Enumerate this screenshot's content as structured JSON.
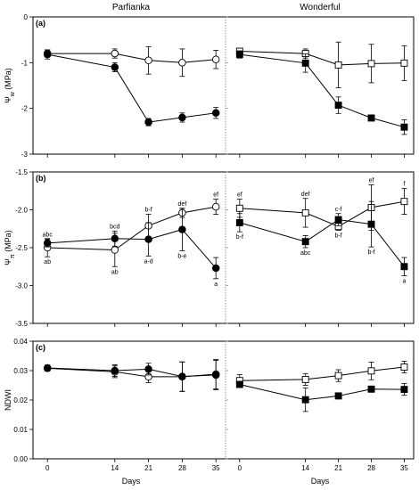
{
  "chart_data": [
    {
      "panel": "(a)",
      "type": "line",
      "ylabel": "Ψw (MPa)",
      "ylabel_symbol": "Ψ",
      "ylabel_sub": "w",
      "ylabel_unit": "(MPa)",
      "ylim": [
        -3,
        0
      ],
      "yticks": [
        0,
        -1,
        -2,
        -3
      ],
      "ytick_labels": [
        "0",
        "-1",
        "-2",
        "-3"
      ],
      "cultivars": [
        {
          "name": "Parfianka",
          "series": [
            {
              "marker": "open-circle",
              "x": [
                0,
                14,
                21,
                28,
                35
              ],
              "y": [
                -0.8,
                -0.8,
                -0.95,
                -1.0,
                -0.93
              ],
              "err": [
                0.08,
                0.1,
                0.3,
                0.3,
                0.2
              ]
            },
            {
              "marker": "filled-circle",
              "x": [
                0,
                14,
                21,
                28,
                35
              ],
              "y": [
                -0.82,
                -1.1,
                -2.3,
                -2.2,
                -2.1
              ],
              "err": [
                0.1,
                0.1,
                0.08,
                0.1,
                0.12
              ]
            }
          ]
        },
        {
          "name": "Wonderful",
          "series": [
            {
              "marker": "open-square",
              "x": [
                0,
                14,
                21,
                28,
                35
              ],
              "y": [
                -0.75,
                -0.8,
                -1.05,
                -1.02,
                -1.01
              ],
              "err": [
                0.06,
                0.1,
                0.5,
                0.42,
                0.38
              ]
            },
            {
              "marker": "filled-square",
              "x": [
                0,
                14,
                21,
                28,
                35
              ],
              "y": [
                -0.82,
                -1.01,
                -1.93,
                -2.21,
                -2.41
              ],
              "err": [
                0.08,
                0.2,
                0.18,
                0.05,
                0.16
              ]
            }
          ]
        }
      ]
    },
    {
      "panel": "(b)",
      "type": "line",
      "ylabel": "Ψπ (MPa)",
      "ylabel_symbol": "Ψ",
      "ylabel_sub": "π",
      "ylabel_unit": "(MPa)",
      "ylim": [
        -3.5,
        -1.5
      ],
      "yticks": [
        -1.5,
        -2.0,
        -2.5,
        -3.0,
        -3.5
      ],
      "ytick_labels": [
        "-1.5",
        "-2.0",
        "-2.5",
        "-3.0",
        "-3.5"
      ],
      "cultivars": [
        {
          "name": "Parfianka",
          "series": [
            {
              "marker": "open-circle",
              "x": [
                0,
                14,
                21,
                28,
                35
              ],
              "y": [
                -2.5,
                -2.53,
                -2.21,
                -2.04,
                -1.96
              ],
              "err": [
                0.12,
                0.22,
                0.15,
                0.06,
                0.1
              ],
              "labels": [
                "ab",
                "ab",
                "b-f",
                "def",
                "ef"
              ],
              "label_side": [
                "below",
                "below",
                "above",
                "above",
                "above"
              ]
            },
            {
              "marker": "filled-circle",
              "x": [
                0,
                14,
                21,
                28,
                35
              ],
              "y": [
                -2.44,
                -2.38,
                -2.39,
                -2.26,
                -2.77
              ],
              "err": [
                0.05,
                0.1,
                0.22,
                0.28,
                0.14
              ],
              "labels": [
                "abc",
                "bcd",
                "a-d",
                "b-e",
                "a"
              ],
              "label_side": [
                "above",
                "above",
                "below",
                "below",
                "below"
              ]
            }
          ]
        },
        {
          "name": "Wonderful",
          "series": [
            {
              "marker": "open-square",
              "x": [
                0,
                14,
                21,
                28,
                35
              ],
              "y": [
                -1.98,
                -2.04,
                -2.22,
                -1.97,
                -1.89
              ],
              "err": [
                0.12,
                0.19,
                0.05,
                0.3,
                0.17
              ],
              "labels": [
                "ef",
                "def",
                "b-f",
                "ef",
                "f"
              ],
              "label_side": [
                "above",
                "above",
                "below",
                "above",
                "above"
              ]
            },
            {
              "marker": "filled-square",
              "x": [
                0,
                14,
                21,
                28,
                35
              ],
              "y": [
                -2.17,
                -2.42,
                -2.13,
                -2.19,
                -2.75
              ],
              "err": [
                0.12,
                0.08,
                0.08,
                0.3,
                0.12
              ],
              "labels": [
                "b-f",
                "abc",
                "c-f",
                "b-f",
                "a"
              ],
              "label_side": [
                "below",
                "below",
                "above",
                "below",
                "below"
              ]
            }
          ]
        }
      ]
    },
    {
      "panel": "(c)",
      "type": "line",
      "ylabel": "NDWI",
      "ylabel_symbol": "NDWI",
      "ylabel_sub": "",
      "ylabel_unit": "",
      "ylim": [
        0,
        0.04
      ],
      "yticks": [
        0,
        0.01,
        0.02,
        0.03,
        0.04
      ],
      "ytick_labels": [
        "0.00",
        "0.01",
        "0.02",
        "0.03",
        "0.04"
      ],
      "cultivars": [
        {
          "name": "Parfianka",
          "series": [
            {
              "marker": "open-circle",
              "x": [
                0,
                14,
                21,
                28,
                35
              ],
              "y": [
                0.0308,
                0.0296,
                0.0279,
                0.0279,
                0.0288
              ],
              "err": [
                0.001,
                0.002,
                0.002,
                0.005,
                0.005
              ]
            },
            {
              "marker": "filled-circle",
              "x": [
                0,
                14,
                21,
                28,
                35
              ],
              "y": [
                0.0309,
                0.03,
                0.0305,
                0.028,
                0.0285
              ],
              "err": [
                0.001,
                0.002,
                0.002,
                0.005,
                0.005
              ]
            }
          ]
        },
        {
          "name": "Wonderful",
          "series": [
            {
              "marker": "open-square",
              "x": [
                0,
                14,
                21,
                28,
                35
              ],
              "y": [
                0.0266,
                0.027,
                0.0283,
                0.0299,
                0.0312
              ],
              "err": [
                0.002,
                0.002,
                0.002,
                0.003,
                0.002
              ]
            },
            {
              "marker": "filled-square",
              "x": [
                0,
                14,
                21,
                28,
                35
              ],
              "y": [
                0.0253,
                0.0201,
                0.0214,
                0.0237,
                0.0236
              ],
              "err": [
                0.001,
                0.004,
                0.001,
                0.001,
                0.002
              ]
            }
          ]
        }
      ]
    }
  ],
  "cultivar_titles": [
    "Parfianka",
    "Wonderful"
  ],
  "xlabel": "Days",
  "xticks": [
    0,
    14,
    21,
    28,
    35
  ],
  "xtick_labels": [
    "0",
    "14",
    "21",
    "28",
    "35"
  ]
}
